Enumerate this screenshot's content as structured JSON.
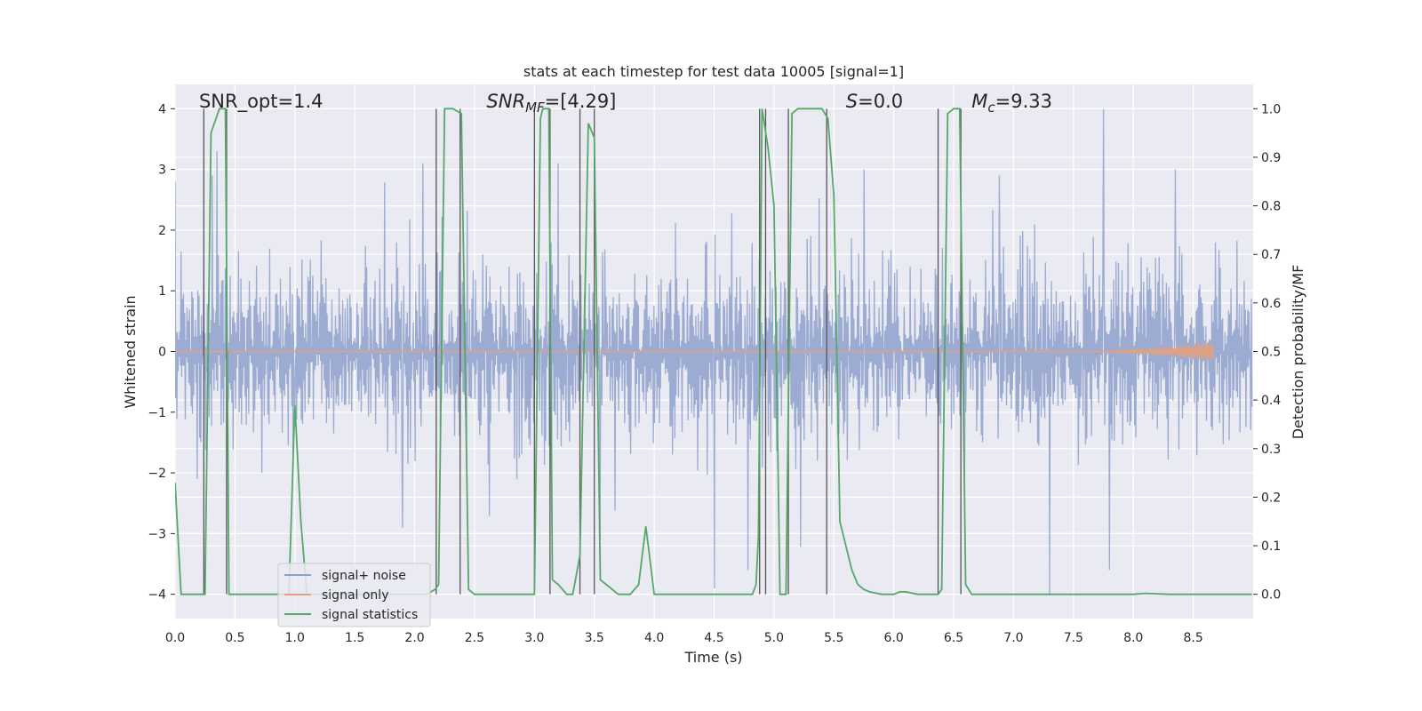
{
  "chart_data": {
    "type": "line",
    "title": "stats at each timestep for test data 10005 [signal=1]",
    "xlabel": "Time (s)",
    "ylabel": "Whitened strain",
    "ylabel_right": "Detection probability/MF",
    "xlim": [
      0.0,
      9.0
    ],
    "ylim": [
      -4.4,
      4.4
    ],
    "ylim_right": [
      -0.05,
      1.05
    ],
    "x_ticks": [
      "0.0",
      "0.5",
      "1.0",
      "1.5",
      "2.0",
      "2.5",
      "3.0",
      "3.5",
      "4.0",
      "4.5",
      "5.0",
      "5.5",
      "6.0",
      "6.5",
      "7.0",
      "7.5",
      "8.0",
      "8.5"
    ],
    "y_ticks": [
      "−4",
      "−3",
      "−2",
      "−1",
      "0",
      "1",
      "2",
      "3",
      "4"
    ],
    "y_ticks_right": [
      "0.0",
      "0.1",
      "0.2",
      "0.3",
      "0.4",
      "0.5",
      "0.6",
      "0.7",
      "0.8",
      "0.9",
      "1.0"
    ],
    "grid": true,
    "legend_position": "lower-left",
    "annotations": [
      {
        "id": "snr-opt",
        "text": "SNR_opt=1.4",
        "x": 0.2
      },
      {
        "id": "snr-mf",
        "text": "SNR",
        "sub": "MF",
        "tail": "=[4.29]",
        "x": 2.6
      },
      {
        "id": "s-stat",
        "text": "S",
        "tail": "=0.0",
        "x": 5.6
      },
      {
        "id": "mc",
        "text": "M",
        "sub": "c",
        "tail": "=9.33",
        "x": 6.65
      }
    ],
    "series": [
      {
        "name": "signal+ noise",
        "color": "#8da0cb",
        "axis": "left",
        "noise_std": 0.8,
        "t_end": 8.99,
        "samples": 1800,
        "peaks": [
          {
            "t": 0.0,
            "v": 2.8
          },
          {
            "t": 0.31,
            "v": 2.9
          },
          {
            "t": 0.35,
            "v": 3.3
          },
          {
            "t": 1.0,
            "v": -0.9
          },
          {
            "t": 1.9,
            "v": -2.9
          },
          {
            "t": 2.07,
            "v": 3.1
          },
          {
            "t": 3.2,
            "v": 3.1
          },
          {
            "t": 3.55,
            "v": -3.1
          },
          {
            "t": 4.5,
            "v": -3.9
          },
          {
            "t": 4.78,
            "v": -3.6
          },
          {
            "t": 5.75,
            "v": 3.0
          },
          {
            "t": 6.88,
            "v": 2.9
          },
          {
            "t": 7.3,
            "v": -4.0
          },
          {
            "t": 7.75,
            "v": 4.0
          },
          {
            "t": 7.8,
            "v": -3.6
          },
          {
            "t": 8.35,
            "v": 3.0
          }
        ]
      },
      {
        "name": "signal only",
        "color": "#e5a17f",
        "axis": "left",
        "chirp_start": 7.4,
        "chirp_end": 8.67,
        "peak_amplitude": 0.18
      },
      {
        "name": "signal statistics",
        "color": "#55a868",
        "axis": "right",
        "x": [
          0.0,
          0.05,
          0.25,
          0.3,
          0.37,
          0.42,
          0.45,
          0.5,
          0.6,
          0.7,
          0.8,
          0.9,
          0.95,
          1.0,
          1.05,
          1.1,
          1.5,
          2.0,
          2.1,
          2.17,
          2.2,
          2.25,
          2.32,
          2.39,
          2.45,
          2.5,
          2.6,
          2.9,
          3.0,
          3.05,
          3.07,
          3.12,
          3.15,
          3.2,
          3.27,
          3.32,
          3.38,
          3.45,
          3.5,
          3.55,
          3.6,
          3.7,
          3.8,
          3.87,
          3.93,
          4.0,
          4.4,
          4.82,
          4.85,
          4.87,
          4.9,
          4.95,
          5.0,
          5.05,
          5.1,
          5.15,
          5.2,
          5.3,
          5.4,
          5.45,
          5.5,
          5.55,
          5.6,
          5.65,
          5.7,
          5.75,
          5.8,
          5.9,
          6.0,
          6.05,
          6.1,
          6.2,
          6.37,
          6.4,
          6.45,
          6.5,
          6.55,
          6.6,
          6.65,
          6.7,
          7.0,
          8.0,
          8.1,
          8.3,
          8.99
        ],
        "y": [
          0.23,
          0.0,
          0.0,
          0.95,
          1.0,
          1.0,
          0.0,
          0.0,
          0.0,
          0.0,
          0.0,
          0.0,
          0.0,
          0.39,
          0.15,
          0.0,
          0.0,
          0.0,
          0.0,
          0.01,
          0.02,
          1.0,
          1.0,
          0.99,
          0.01,
          0.0,
          0.0,
          0.0,
          0.0,
          0.98,
          1.0,
          1.0,
          0.03,
          0.02,
          0.0,
          0.0,
          0.08,
          0.97,
          0.94,
          0.03,
          0.02,
          0.0,
          0.0,
          0.02,
          0.14,
          0.0,
          0.0,
          0.0,
          0.02,
          0.12,
          1.0,
          0.92,
          0.8,
          0.0,
          0.0,
          0.99,
          1.0,
          1.0,
          1.0,
          0.98,
          0.82,
          0.15,
          0.1,
          0.05,
          0.02,
          0.01,
          0.005,
          0.0,
          0.0,
          0.005,
          0.005,
          0.0,
          0.0,
          0.01,
          0.99,
          1.0,
          1.0,
          0.02,
          0.0,
          0.0,
          0.0,
          0.0,
          0.002,
          0.0,
          0.0
        ]
      }
    ],
    "vertical_lines": [
      0.24,
      0.43,
      2.18,
      2.38,
      3.0,
      3.13,
      3.38,
      3.5,
      4.88,
      4.93,
      5.12,
      5.44,
      6.37,
      6.56
    ]
  }
}
